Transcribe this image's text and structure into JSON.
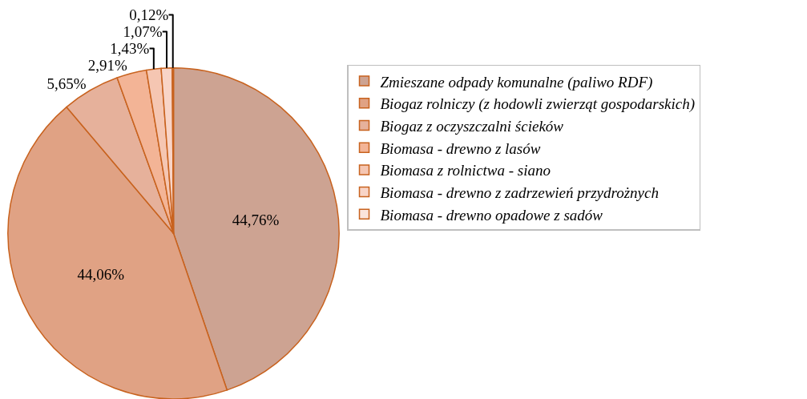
{
  "chart_data": {
    "type": "pie",
    "categories": [
      "Zmieszane odpady komunalne (paliwo RDF)",
      "Biogaz rolniczy (z hodowli zwierząt gospodarskich)",
      "Biogaz z oczyszczalni ścieków",
      "Biomasa - drewno z lasów",
      "Biomasa z rolnictwa - siano",
      "Biomasa - drewno z zadrzewień przydrożnych",
      "Biomasa - drewno opadowe z sadów"
    ],
    "values": [
      44.76,
      44.06,
      5.65,
      2.91,
      1.43,
      1.07,
      0.12
    ],
    "value_labels": [
      "44,76%",
      "44,06%",
      "5,65%",
      "2,91%",
      "1,43%",
      "1,07%",
      "0,12%"
    ],
    "colors": [
      "#cda392",
      "#e0a284",
      "#e6b19b",
      "#f3b496",
      "#f5c6b2",
      "#f8d4c7",
      "#fbe4dc"
    ],
    "legend": "right"
  }
}
